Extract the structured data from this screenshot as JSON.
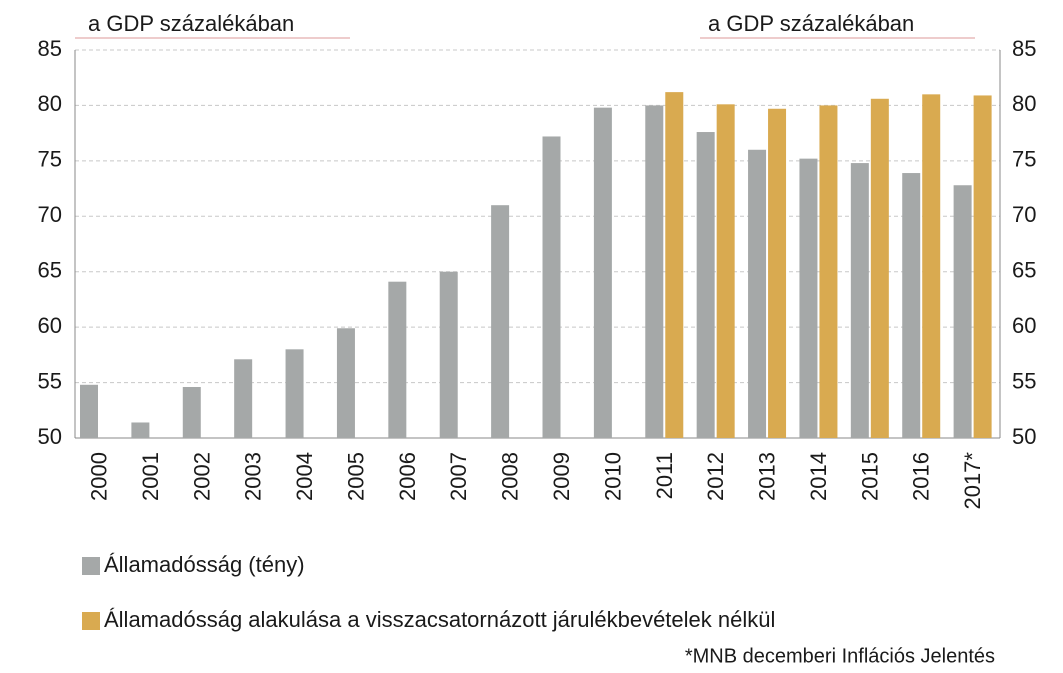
{
  "chart_data": {
    "type": "bar",
    "y_label": "a GDP százalékában",
    "y2_label": "a GDP százalékában",
    "categories": [
      "2000",
      "2001",
      "2002",
      "2003",
      "2004",
      "2005",
      "2006",
      "2007",
      "2008",
      "2009",
      "2010",
      "2011",
      "2012",
      "2013",
      "2014",
      "2015",
      "2016",
      "2017*"
    ],
    "series": [
      {
        "name": "Államadósság (tény)",
        "color": "#a5a8a8",
        "values": [
          54.8,
          51.4,
          54.6,
          57.1,
          58.0,
          59.9,
          64.1,
          65.0,
          71.0,
          77.2,
          79.8,
          80.0,
          77.6,
          76.0,
          75.2,
          74.8,
          73.9,
          72.8
        ]
      },
      {
        "name": "Államadósság alakulása a visszacsatornázott járulékbevételek nélkül",
        "color": "#d9aa50",
        "values": [
          null,
          null,
          null,
          null,
          null,
          null,
          null,
          null,
          null,
          null,
          null,
          81.2,
          80.1,
          79.7,
          80.0,
          80.6,
          81.0,
          80.9
        ]
      }
    ],
    "ylim": [
      50,
      85
    ],
    "yticks": [
      50,
      55,
      60,
      65,
      70,
      75,
      80,
      85
    ],
    "y2lim": [
      50,
      85
    ],
    "y2ticks": [
      50,
      55,
      60,
      65,
      70,
      75,
      80,
      85
    ],
    "grid": true,
    "note": "*MNB decemberi Inflációs Jelentés"
  }
}
